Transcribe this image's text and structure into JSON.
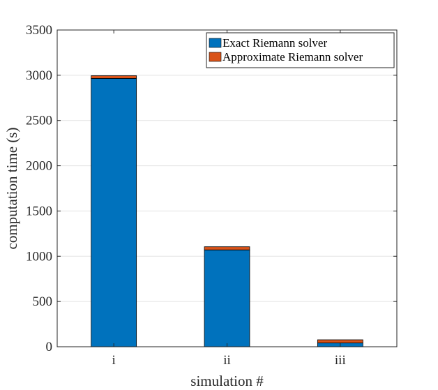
{
  "chart_data": {
    "type": "bar",
    "stacked": true,
    "categories": [
      "i",
      "ii",
      "iii"
    ],
    "series": [
      {
        "name": "Exact Riemann solver",
        "color": "#0072BD",
        "values": [
          2965,
          1070,
          42
        ]
      },
      {
        "name": "Approximate Riemann solver",
        "color": "#D95319",
        "values": [
          30,
          35,
          35
        ]
      }
    ],
    "xlabel": "simulation #",
    "ylabel": "computation time (s)",
    "ylim": [
      0,
      3500
    ],
    "yticks": [
      0,
      500,
      1000,
      1500,
      2000,
      2500,
      3000,
      3500
    ],
    "grid": "horizontal",
    "legend_position": "top-right"
  }
}
